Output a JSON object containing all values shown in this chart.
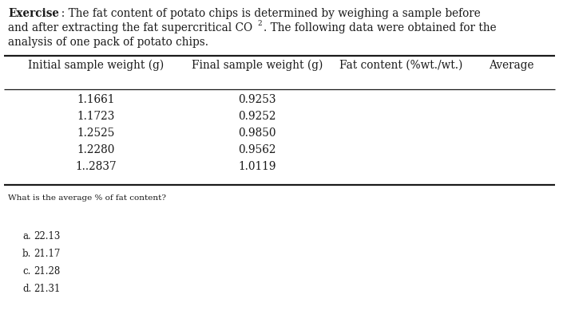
{
  "col_headers": [
    "Initial sample weight (g)",
    "Final sample weight (g)",
    "Fat content (%wt./wt.)",
    "Average"
  ],
  "initial_weights": [
    "1.1661",
    "1.1723",
    "1.2525",
    "1.2280",
    "1..2837"
  ],
  "final_weights": [
    "0.9253",
    "0.9252",
    "0.9850",
    "0.9562",
    "1.0119"
  ],
  "question": "What is the average % of fat content?",
  "options": [
    {
      "label": "a.",
      "text": "22.13"
    },
    {
      "label": "b.",
      "text": "21.17"
    },
    {
      "label": "c.",
      "text": "21.28"
    },
    {
      "label": "d.",
      "text": "21.31"
    }
  ],
  "bg_color": "#ffffff",
  "text_color": "#1a1a1a",
  "fs_exercise": 9.8,
  "fs_table_hdr": 9.8,
  "fs_table_data": 9.8,
  "fs_question": 7.5,
  "fs_options": 8.5,
  "lw_thick": 1.6,
  "lw_thin": 0.9,
  "fig_w": 7.05,
  "fig_h": 3.94,
  "dpi": 100
}
